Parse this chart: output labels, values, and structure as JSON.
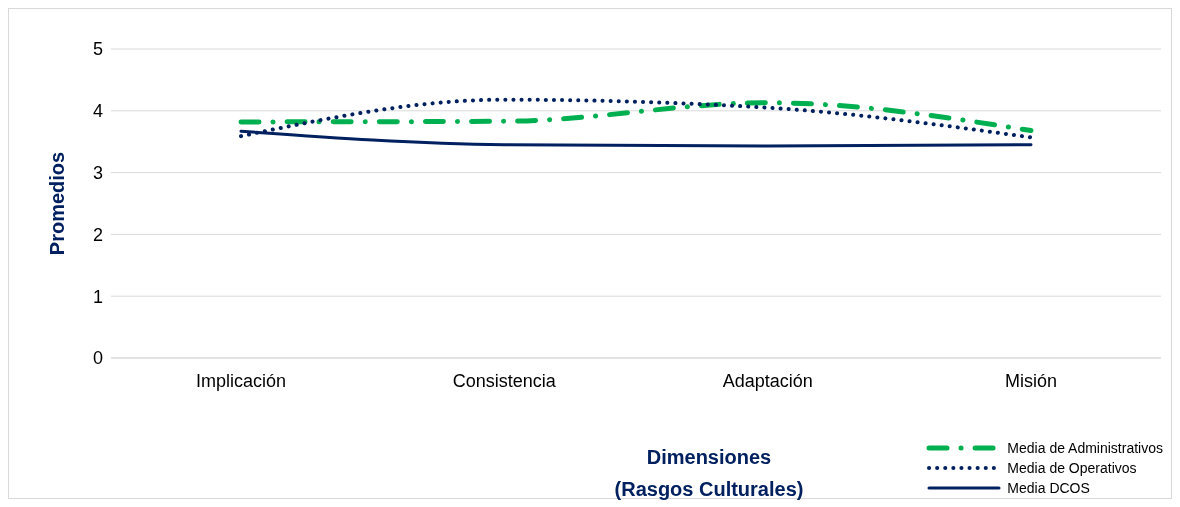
{
  "chart_data": {
    "type": "line",
    "xlabel": "Dimensiones\n(Rasgos Culturales)",
    "ylabel": "Promedios",
    "categories": [
      "Implicación",
      "Consistencia",
      "Adaptación",
      "Misión"
    ],
    "series": [
      {
        "name": "Media de Administrativos",
        "color": "#00b050",
        "line_style": "dashed",
        "values": [
          3.82,
          3.83,
          4.13,
          3.68
        ]
      },
      {
        "name": "Media de Operativos",
        "color": "#002060",
        "line_style": "dotted",
        "values": [
          3.59,
          4.18,
          4.05,
          3.57
        ]
      },
      {
        "name": "Media DCOS",
        "color": "#002060",
        "line_style": "solid",
        "values": [
          3.67,
          3.45,
          3.43,
          3.45
        ]
      }
    ],
    "ylim": [
      0,
      5
    ],
    "yticks": [
      0,
      1,
      2,
      3,
      4,
      5
    ],
    "grid": "y",
    "legend": "bottom right",
    "marker": "none"
  }
}
